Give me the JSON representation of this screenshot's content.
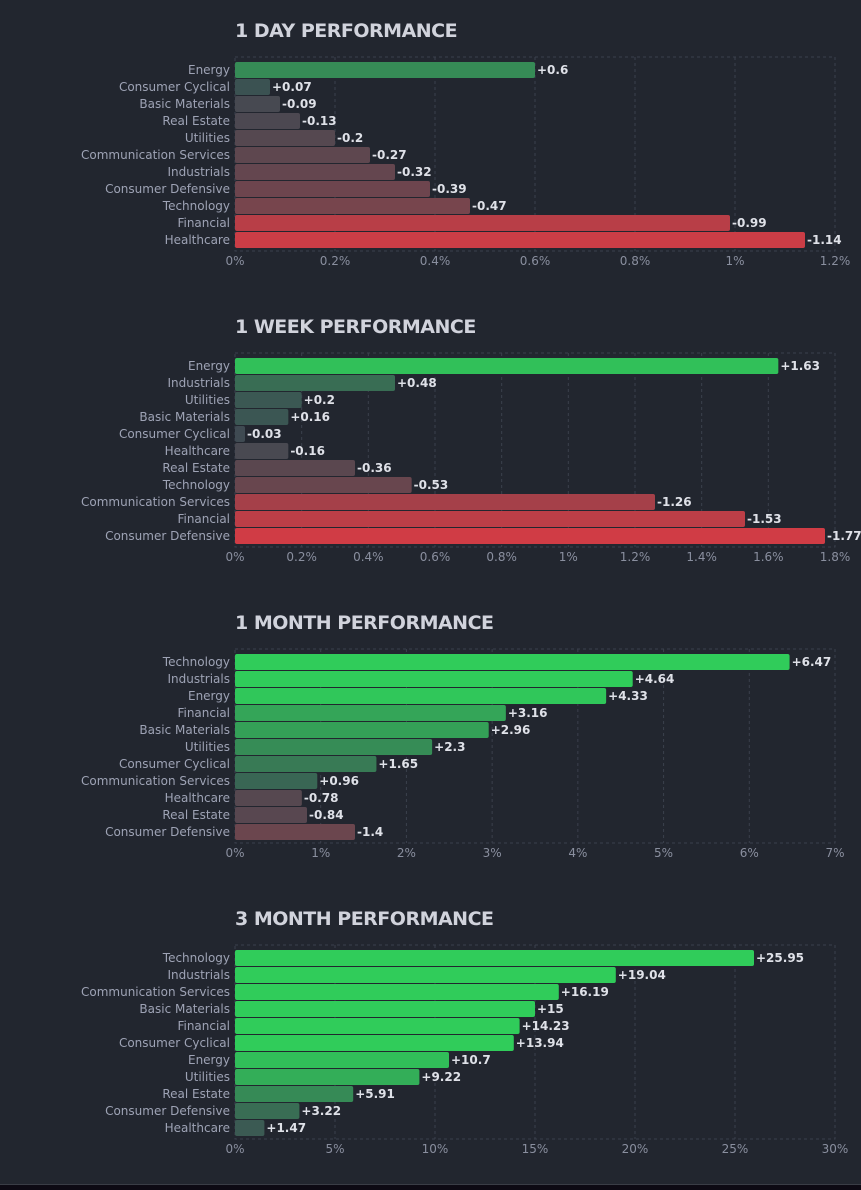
{
  "chart_data": [
    {
      "type": "bar",
      "orientation": "horizontal",
      "title": "1 DAY PERFORMANCE",
      "categories": [
        "Energy",
        "Consumer Cyclical",
        "Basic Materials",
        "Real Estate",
        "Utilities",
        "Communication Services",
        "Industrials",
        "Consumer Defensive",
        "Technology",
        "Financial",
        "Healthcare"
      ],
      "values": [
        0.6,
        0.07,
        -0.09,
        -0.13,
        -0.2,
        -0.27,
        -0.32,
        -0.39,
        -0.47,
        -0.99,
        -1.14
      ],
      "value_labels": [
        "+0.6",
        "+0.07",
        "-0.09",
        "-0.13",
        "-0.2",
        "-0.27",
        "-0.32",
        "-0.39",
        "-0.47",
        "-0.99",
        "-1.14"
      ],
      "bar_length": "absolute value",
      "xlim": [
        0,
        1.2
      ],
      "xticks": [
        0,
        0.2,
        0.4,
        0.6,
        0.8,
        1,
        1.2
      ],
      "xtick_labels": [
        "0%",
        "0.2%",
        "0.4%",
        "0.6%",
        "0.8%",
        "1%",
        "1.2%"
      ],
      "xlabel": "",
      "ylabel": "",
      "grid": true,
      "legend": "none"
    },
    {
      "type": "bar",
      "orientation": "horizontal",
      "title": "1 WEEK PERFORMANCE",
      "categories": [
        "Energy",
        "Industrials",
        "Utilities",
        "Basic Materials",
        "Consumer Cyclical",
        "Healthcare",
        "Real Estate",
        "Technology",
        "Communication Services",
        "Financial",
        "Consumer Defensive"
      ],
      "values": [
        1.63,
        0.48,
        0.2,
        0.16,
        -0.03,
        -0.16,
        -0.36,
        -0.53,
        -1.26,
        -1.53,
        -1.77
      ],
      "value_labels": [
        "+1.63",
        "+0.48",
        "+0.2",
        "+0.16",
        "-0.03",
        "-0.16",
        "-0.36",
        "-0.53",
        "-1.26",
        "-1.53",
        "-1.77"
      ],
      "bar_length": "absolute value",
      "xlim": [
        0,
        1.8
      ],
      "xticks": [
        0,
        0.2,
        0.4,
        0.6,
        0.8,
        1,
        1.2,
        1.4,
        1.6,
        1.8
      ],
      "xtick_labels": [
        "0%",
        "0.2%",
        "0.4%",
        "0.6%",
        "0.8%",
        "1%",
        "1.2%",
        "1.4%",
        "1.6%",
        "1.8%"
      ],
      "xlabel": "",
      "ylabel": "",
      "grid": true,
      "legend": "none"
    },
    {
      "type": "bar",
      "orientation": "horizontal",
      "title": "1 MONTH PERFORMANCE",
      "categories": [
        "Technology",
        "Industrials",
        "Energy",
        "Financial",
        "Basic Materials",
        "Utilities",
        "Consumer Cyclical",
        "Communication Services",
        "Healthcare",
        "Real Estate",
        "Consumer Defensive"
      ],
      "values": [
        6.47,
        4.64,
        4.33,
        3.16,
        2.96,
        2.3,
        1.65,
        0.96,
        -0.78,
        -0.84,
        -1.4
      ],
      "value_labels": [
        "+6.47",
        "+4.64",
        "+4.33",
        "+3.16",
        "+2.96",
        "+2.3",
        "+1.65",
        "+0.96",
        "-0.78",
        "-0.84",
        "-1.4"
      ],
      "bar_length": "absolute value",
      "xlim": [
        0,
        7
      ],
      "xticks": [
        0,
        1,
        2,
        3,
        4,
        5,
        6,
        7
      ],
      "xtick_labels": [
        "0%",
        "1%",
        "2%",
        "3%",
        "4%",
        "5%",
        "6%",
        "7%"
      ],
      "xlabel": "",
      "ylabel": "",
      "grid": true,
      "legend": "none"
    },
    {
      "type": "bar",
      "orientation": "horizontal",
      "title": "3 MONTH PERFORMANCE",
      "categories": [
        "Technology",
        "Industrials",
        "Communication Services",
        "Basic Materials",
        "Financial",
        "Consumer Cyclical",
        "Energy",
        "Utilities",
        "Real Estate",
        "Consumer Defensive",
        "Healthcare"
      ],
      "values": [
        25.95,
        19.04,
        16.19,
        15,
        14.23,
        13.94,
        10.7,
        9.22,
        5.91,
        3.22,
        1.47
      ],
      "value_labels": [
        "+25.95",
        "+19.04",
        "+16.19",
        "+15",
        "+14.23",
        "+13.94",
        "+10.7",
        "+9.22",
        "+5.91",
        "+3.22",
        "+1.47"
      ],
      "bar_length": "absolute value",
      "xlim": [
        0,
        30
      ],
      "xticks": [
        0,
        5,
        10,
        15,
        20,
        25,
        30
      ],
      "xtick_labels": [
        "0%",
        "5%",
        "10%",
        "15%",
        "20%",
        "25%",
        "30%"
      ],
      "xlabel": "",
      "ylabel": "",
      "grid": true,
      "legend": "none"
    }
  ],
  "colors": {
    "background": "#22262f",
    "neutral": "#3c4a52",
    "positive_strong": "#30cc5a",
    "negative_strong": "#d23c45",
    "title": "#d1d3dc",
    "category_label": "#9ea3b5",
    "value_label": "#dfe1e8",
    "tick_label": "#8a8f9f",
    "gridline": "#3b404c"
  }
}
